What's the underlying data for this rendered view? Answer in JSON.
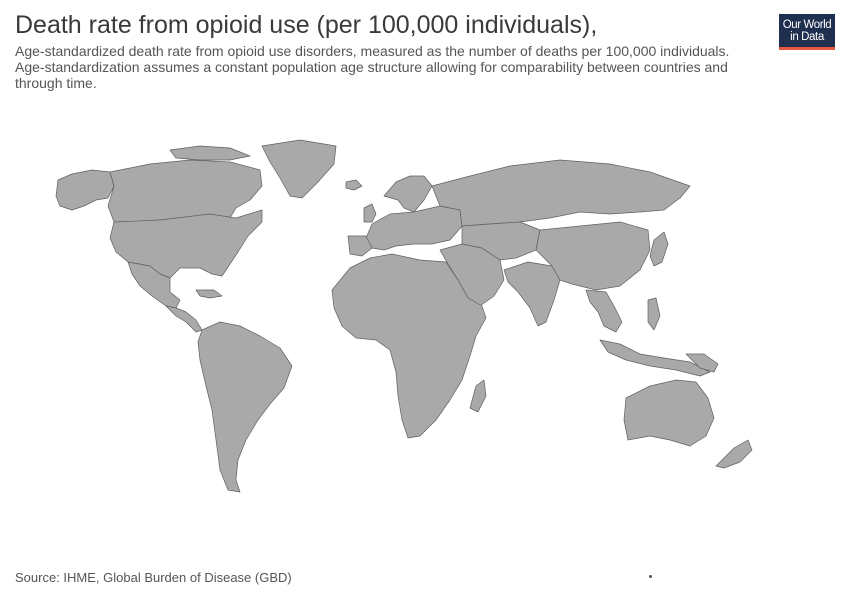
{
  "header": {
    "title": "Death rate from opioid use (per 100,000 individuals),",
    "subtitle": "Age-standardized death rate from opioid use disorders, measured as the number of deaths per 100,000 individuals. Age-standardization assumes a constant population age structure allowing for comparability between countries and through time."
  },
  "logo": {
    "line1": "Our World",
    "line2": "in Data",
    "bar_color": "#e5573f",
    "bg_color": "#1f2f4f"
  },
  "map": {
    "land_color": "#a9a9a9",
    "border_color": "#606060",
    "projection": "world",
    "data_available": false
  },
  "footer": {
    "source": "Source: IHME, Global Burden of Disease (GBD)"
  }
}
